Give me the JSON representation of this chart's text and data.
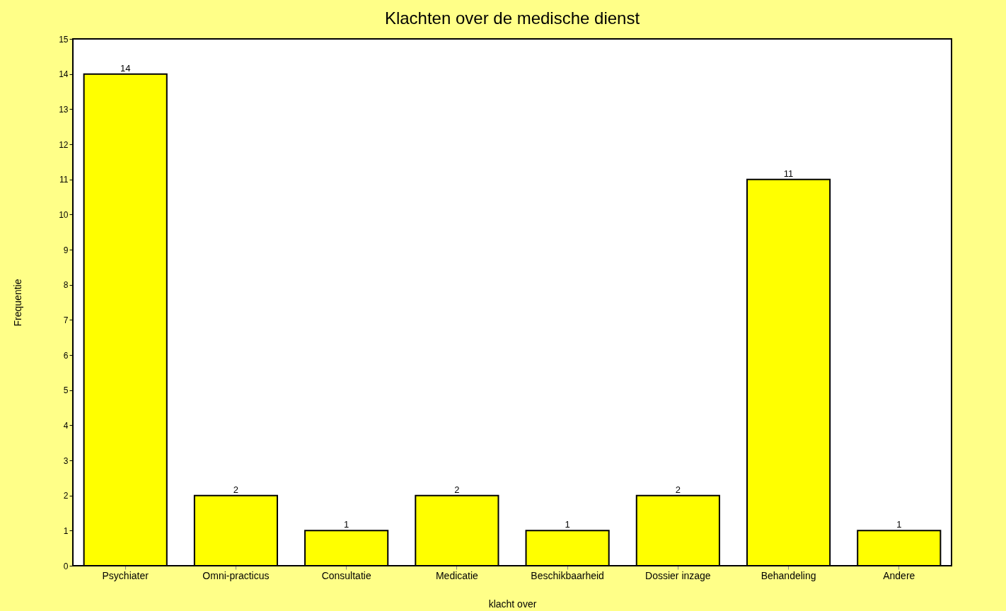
{
  "chart_data": {
    "type": "bar",
    "title": "Klachten over de medische dienst",
    "xlabel": "klacht over",
    "ylabel": "Frequentie",
    "categories": [
      "Psychiater",
      "Omni-practicus",
      "Consultatie",
      "Medicatie",
      "Beschikbaarheid",
      "Dossier inzage",
      "Behandeling",
      "Andere"
    ],
    "values": [
      14,
      2,
      1,
      2,
      1,
      2,
      11,
      1
    ],
    "color": "#ffff00",
    "ylim": [
      0,
      15
    ],
    "yticks": [
      0,
      1,
      2,
      3,
      4,
      5,
      6,
      7,
      8,
      9,
      10,
      11,
      12,
      13,
      14,
      15
    ],
    "grid": false,
    "data_labels": true
  }
}
